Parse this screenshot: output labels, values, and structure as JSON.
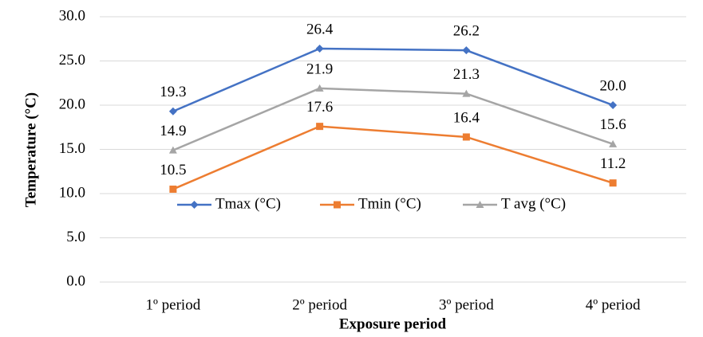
{
  "chart_data": {
    "type": "line",
    "x_label": "Exposure period",
    "y_label": "Temperature (°C)",
    "categories": [
      "1º period",
      "2º period",
      "3º period",
      "4º period"
    ],
    "series": [
      {
        "name": "Tmax (°C)",
        "color": "#4472c4",
        "marker": "diamond",
        "values": [
          19.3,
          26.4,
          26.2,
          20.0
        ],
        "value_labels": [
          "19.3",
          "26.4",
          "26.2",
          "20.0"
        ]
      },
      {
        "name": "Tmin (°C)",
        "color": "#ed7d31",
        "marker": "square",
        "values": [
          10.5,
          17.6,
          16.4,
          11.2
        ],
        "value_labels": [
          "10.5",
          "17.6",
          "16.4",
          "11.2"
        ]
      },
      {
        "name": "T avg (°C)",
        "color": "#a5a5a5",
        "marker": "triangle",
        "values": [
          14.9,
          21.9,
          21.3,
          15.6
        ],
        "value_labels": [
          "14.9",
          "21.9",
          "21.3",
          "15.6"
        ]
      }
    ],
    "ylim": [
      0,
      30
    ],
    "yticks": [
      {
        "value": 0,
        "label": "0.0"
      },
      {
        "value": 5,
        "label": "5.0"
      },
      {
        "value": 10,
        "label": "10.0"
      },
      {
        "value": 15,
        "label": "15.0"
      },
      {
        "value": 20,
        "label": "20.0"
      },
      {
        "value": 25,
        "label": "25.0"
      },
      {
        "value": 30,
        "label": "30.0"
      }
    ],
    "grid": true,
    "legend": "center"
  }
}
